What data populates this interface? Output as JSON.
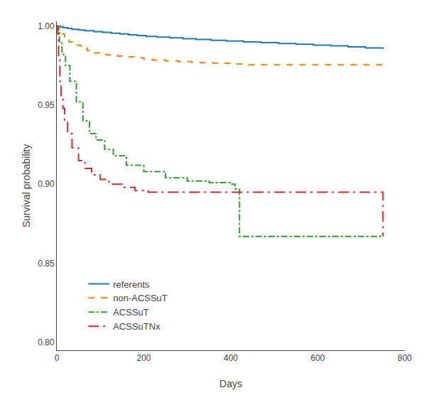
{
  "chart_data": {
    "type": "step",
    "xlabel": "Days",
    "ylabel": "Survival probability",
    "xlim": [
      0,
      800
    ],
    "ylim": [
      0.795,
      1.003
    ],
    "xticks": [
      0,
      200,
      400,
      600,
      800
    ],
    "yticks": [
      {
        "value": 0.8,
        "label": "0.80"
      },
      0.85,
      {
        "value": 0.9,
        "label": "0.90"
      },
      0.95,
      {
        "value": 1.0,
        "label": "1.00"
      }
    ],
    "grid": false,
    "legend": "lower left",
    "series": [
      {
        "name": "referents",
        "line_style": "solid",
        "x": [
          0,
          8,
          15,
          25,
          35,
          50,
          65,
          85,
          105,
          125,
          145,
          165,
          185,
          205,
          230,
          260,
          290,
          320,
          355,
          390,
          430,
          470,
          510,
          550,
          590,
          630,
          670,
          710,
          750
        ],
        "values": [
          1.0,
          0.9995,
          0.999,
          0.9985,
          0.998,
          0.9975,
          0.997,
          0.9965,
          0.996,
          0.9955,
          0.995,
          0.9945,
          0.994,
          0.9935,
          0.993,
          0.9925,
          0.992,
          0.9915,
          0.991,
          0.9905,
          0.99,
          0.9895,
          0.989,
          0.9885,
          0.988,
          0.9875,
          0.9868,
          0.9862,
          0.9855
        ]
      },
      {
        "name": "non-ACSSuT",
        "line_style": "dash",
        "x": [
          0,
          5,
          10,
          18,
          28,
          40,
          55,
          70,
          85,
          100,
          120,
          140,
          160,
          180,
          200,
          220,
          250,
          280,
          310,
          330,
          360,
          400,
          430,
          750
        ],
        "values": [
          1.0,
          0.998,
          0.995,
          0.992,
          0.99,
          0.988,
          0.986,
          0.9845,
          0.983,
          0.982,
          0.9815,
          0.981,
          0.9805,
          0.98,
          0.979,
          0.9785,
          0.978,
          0.9775,
          0.977,
          0.9768,
          0.9765,
          0.976,
          0.9755,
          0.972
        ]
      },
      {
        "name": "ACSSuT",
        "line_style": "dashdot",
        "x": [
          0,
          3,
          6,
          12,
          20,
          30,
          45,
          60,
          75,
          90,
          110,
          130,
          160,
          200,
          250,
          300,
          350,
          400,
          410,
          420,
          560,
          570,
          600,
          650,
          660,
          750
        ],
        "values": [
          1.0,
          0.997,
          0.99,
          0.982,
          0.975,
          0.965,
          0.952,
          0.94,
          0.932,
          0.928,
          0.922,
          0.918,
          0.912,
          0.908,
          0.904,
          0.902,
          0.901,
          0.9,
          0.897,
          0.867,
          0.867,
          0.867,
          0.867,
          0.867,
          0.867,
          0.867
        ]
      },
      {
        "name": "ACSSuTNx",
        "line_style": "longdashdot",
        "x": [
          0,
          2,
          4,
          7,
          10,
          14,
          18,
          25,
          35,
          50,
          65,
          80,
          100,
          120,
          150,
          180,
          210,
          750
        ],
        "values": [
          1.0,
          0.995,
          0.98,
          0.965,
          0.955,
          0.948,
          0.94,
          0.932,
          0.923,
          0.915,
          0.91,
          0.906,
          0.903,
          0.9,
          0.898,
          0.896,
          0.895,
          0.867
        ]
      }
    ]
  }
}
